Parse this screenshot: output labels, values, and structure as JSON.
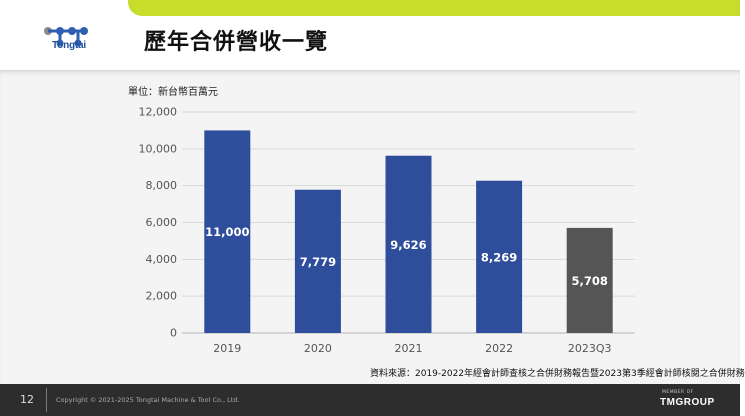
{
  "header": {
    "logo_text": "Tongtai",
    "title": "歷年合併營收一覽"
  },
  "chart": {
    "unit_label": "單位：新台幣百萬元",
    "source_note": "資料來源：2019-2022年經會計師查核之合併財務報告暨2023第3季經會計師核閱之合併財務"
  },
  "chart_data": {
    "type": "bar",
    "title": "",
    "xlabel": "",
    "ylabel": "",
    "categories": [
      "2019",
      "2020",
      "2021",
      "2022",
      "2023Q3"
    ],
    "values": [
      11000,
      7779,
      9626,
      8269,
      5708
    ],
    "value_labels": [
      "11,000",
      "7,779",
      "9,626",
      "8,269",
      "5,708"
    ],
    "ylim": [
      0,
      12000
    ],
    "yticks": [
      0,
      2000,
      4000,
      6000,
      8000,
      10000,
      12000
    ],
    "ytick_labels": [
      "0",
      "2,000",
      "4,000",
      "6,000",
      "8,000",
      "10,000",
      "12,000"
    ],
    "grid": true,
    "colors": [
      "#2e4d9a",
      "#2e4d9a",
      "#2e4d9a",
      "#2e4d9a",
      "#555555"
    ]
  },
  "footer": {
    "page_number": "12",
    "copyright": "Copyright © 2021-2025 Tongtai Machine & Tool Co., Ltd.",
    "member_of": "MEMBER OF",
    "group_logo": "TMGROUP"
  }
}
